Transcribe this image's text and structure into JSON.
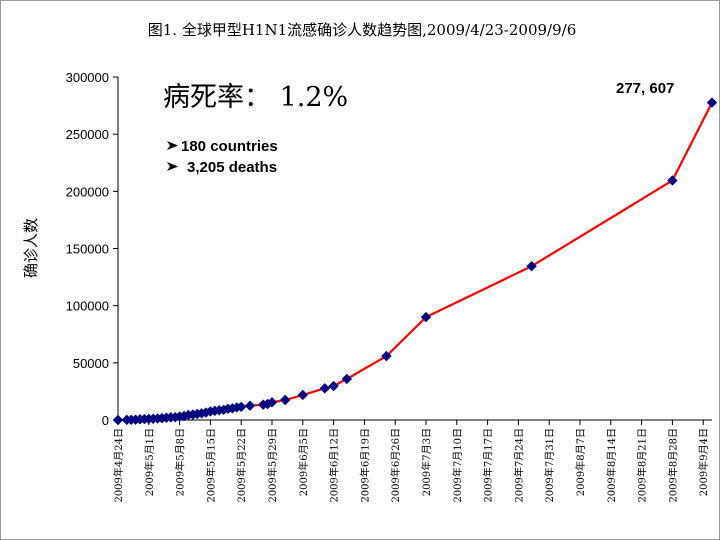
{
  "chart_data": {
    "type": "line",
    "title": "图1. 全球甲型H1N1流感确诊人数趋势图,2009/4/23-2009/9/6",
    "xlabel": "",
    "ylabel": "确诊人数",
    "ylim": [
      0,
      300000
    ],
    "yticks": [
      "0",
      "50000",
      "100000",
      "150000",
      "200000",
      "250000",
      "300000"
    ],
    "xlim": [
      "2009-04-24",
      "2009-09-06"
    ],
    "xticks": [
      "2009年4月24日",
      "2009年5月1日",
      "2009年5月8日",
      "2009年5月15日",
      "2009年5月22日",
      "2009年5月29日",
      "2009年6月5日",
      "2009年6月12日",
      "2009年6月19日",
      "2009年6月26日",
      "2009年7月3日",
      "2009年7月10日",
      "2009年7月17日",
      "2009年7月24日",
      "2009年7月31日",
      "2009年8月7日",
      "2009年8月14日",
      "2009年8月21日",
      "2009年8月28日",
      "2009年9月4日"
    ],
    "grid": false,
    "legend": "none",
    "line_color": "#ff0000",
    "marker_color": "#000080",
    "series": [
      {
        "x": [
          "2009-04-24",
          "2009-04-26",
          "2009-04-27",
          "2009-04-28",
          "2009-04-29",
          "2009-04-30",
          "2009-05-01",
          "2009-05-02",
          "2009-05-03",
          "2009-05-04",
          "2009-05-05",
          "2009-05-06",
          "2009-05-07",
          "2009-05-08",
          "2009-05-09",
          "2009-05-10",
          "2009-05-11",
          "2009-05-12",
          "2009-05-13",
          "2009-05-14",
          "2009-05-15",
          "2009-05-16",
          "2009-05-17",
          "2009-05-18",
          "2009-05-19",
          "2009-05-20",
          "2009-05-21",
          "2009-05-22",
          "2009-05-24",
          "2009-05-27",
          "2009-05-28",
          "2009-05-29",
          "2009-06-01",
          "2009-06-05",
          "2009-06-10",
          "2009-06-12",
          "2009-06-15",
          "2009-06-24",
          "2009-07-03",
          "2009-07-27",
          "2009-08-28",
          "2009-09-06"
        ],
        "values": [
          0,
          100,
          200,
          300,
          600,
          800,
          900,
          1100,
          1400,
          1600,
          2000,
          2300,
          2500,
          3000,
          3400,
          4400,
          4700,
          5300,
          5800,
          6500,
          7500,
          8000,
          8500,
          8900,
          9800,
          10200,
          11000,
          11500,
          12500,
          13400,
          14000,
          15500,
          17500,
          21900,
          27700,
          29700,
          35900,
          55900,
          90000,
          134500,
          209500,
          277607
        ]
      }
    ],
    "annotations": {
      "fatality_rate": "病死率： 1.2%",
      "countries": "180 countries",
      "deaths": "3,205 deaths",
      "last_value": "277, 607"
    }
  }
}
